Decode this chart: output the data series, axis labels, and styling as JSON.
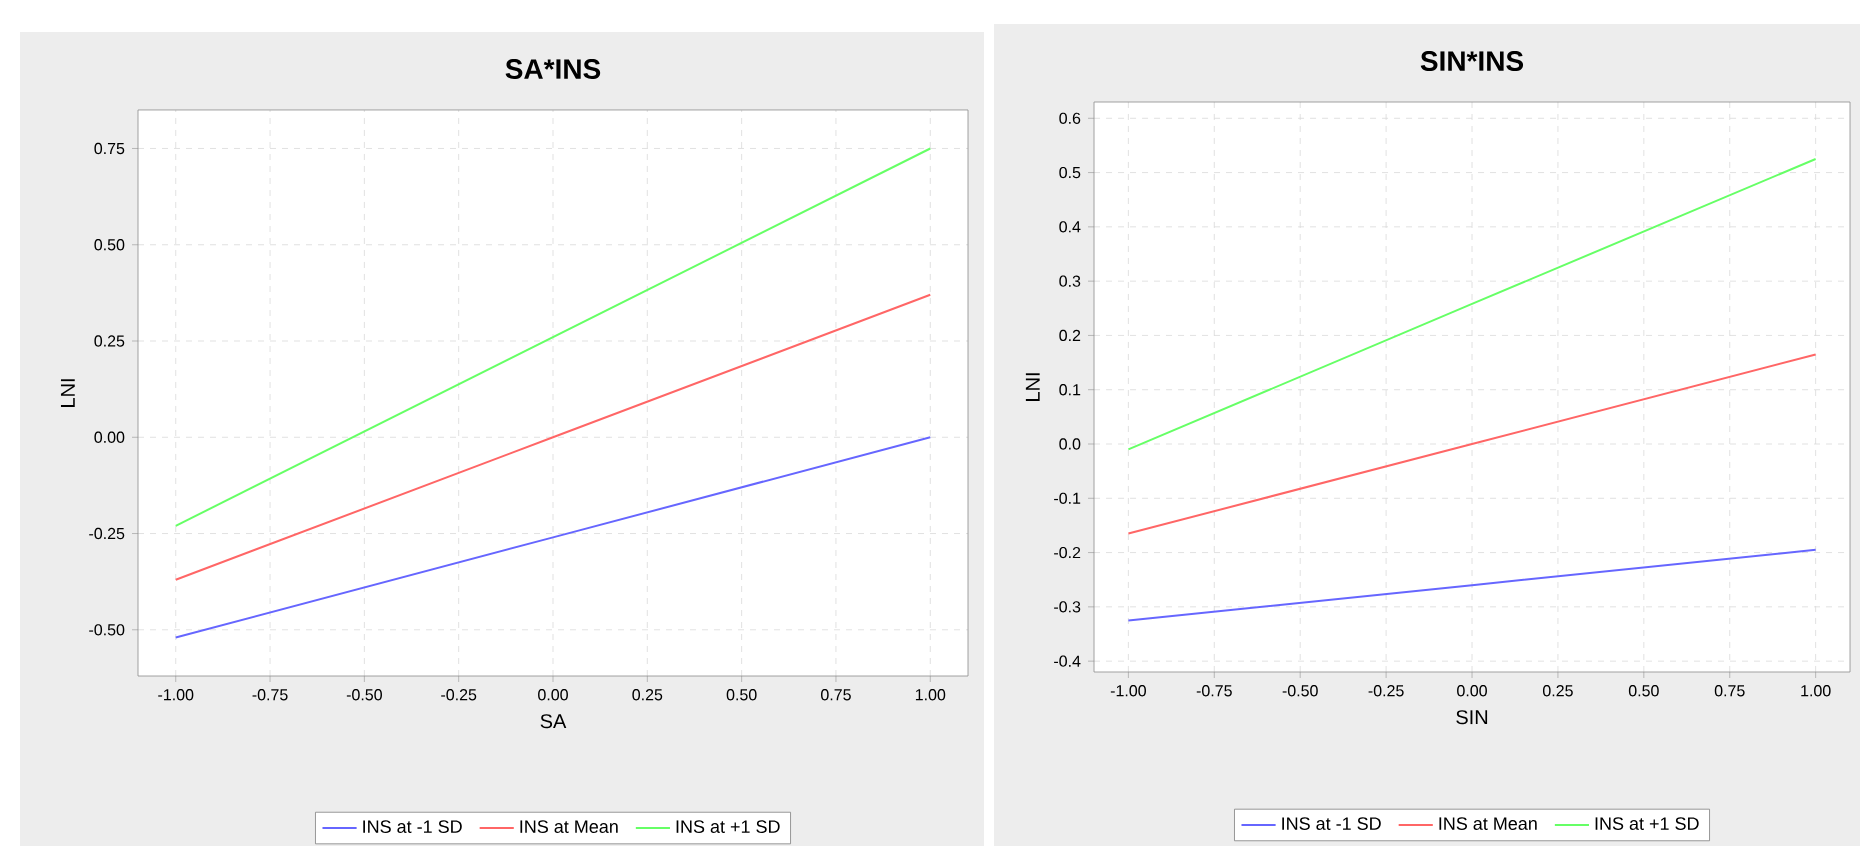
{
  "chart_data": [
    {
      "type": "line",
      "title": "SA*INS",
      "xlabel": "SA",
      "ylabel": "LNI",
      "xlim": [
        -1.1,
        1.1
      ],
      "ylim": [
        -0.62,
        0.85
      ],
      "xticks": [
        {
          "value": -1,
          "label": "-1.00"
        },
        {
          "value": -0.75,
          "label": "-0.75"
        },
        {
          "value": -0.5,
          "label": "-0.50"
        },
        {
          "value": -0.25,
          "label": "-0.25"
        },
        {
          "value": 0,
          "label": "0.00"
        },
        {
          "value": 0.25,
          "label": "0.25"
        },
        {
          "value": 0.5,
          "label": "0.50"
        },
        {
          "value": 0.75,
          "label": "0.75"
        },
        {
          "value": 1,
          "label": "1.00"
        }
      ],
      "yticks": [
        {
          "value": -0.5,
          "label": "-0.50"
        },
        {
          "value": -0.25,
          "label": "-0.25"
        },
        {
          "value": 0,
          "label": "0.00"
        },
        {
          "value": 0.25,
          "label": "0.25"
        },
        {
          "value": 0.5,
          "label": "0.50"
        },
        {
          "value": 0.75,
          "label": "0.75"
        }
      ],
      "grid": true,
      "legend": "bottom",
      "series": [
        {
          "name": "INS at -1 SD",
          "color": "#6666ff",
          "x": [
            -1,
            0,
            1
          ],
          "values": [
            -0.52,
            -0.26,
            0.0
          ]
        },
        {
          "name": "INS at Mean",
          "color": "#ff6666",
          "x": [
            -1,
            0,
            1
          ],
          "values": [
            -0.37,
            0.0,
            0.37
          ]
        },
        {
          "name": "INS at +1 SD",
          "color": "#66ff66",
          "x": [
            -1,
            0,
            1
          ],
          "values": [
            -0.23,
            0.26,
            0.75
          ]
        }
      ]
    },
    {
      "type": "line",
      "title": "SIN*INS",
      "xlabel": "SIN",
      "ylabel": "LNI",
      "xlim": [
        -1.1,
        1.1
      ],
      "ylim": [
        -0.42,
        0.63
      ],
      "xticks": [
        {
          "value": -1,
          "label": "-1.00"
        },
        {
          "value": -0.75,
          "label": "-0.75"
        },
        {
          "value": -0.5,
          "label": "-0.50"
        },
        {
          "value": -0.25,
          "label": "-0.25"
        },
        {
          "value": 0,
          "label": "0.00"
        },
        {
          "value": 0.25,
          "label": "0.25"
        },
        {
          "value": 0.5,
          "label": "0.50"
        },
        {
          "value": 0.75,
          "label": "0.75"
        },
        {
          "value": 1,
          "label": "1.00"
        }
      ],
      "yticks": [
        -0.4,
        -0.3,
        -0.2,
        -0.1,
        {
          "value": 0,
          "label": "0.0"
        },
        0.1,
        0.2,
        0.3,
        0.4,
        0.5,
        0.6
      ],
      "grid": true,
      "legend": "bottom",
      "series": [
        {
          "name": "INS at -1 SD",
          "color": "#6666ff",
          "x": [
            -1,
            0,
            1
          ],
          "values": [
            -0.325,
            -0.26,
            -0.195
          ]
        },
        {
          "name": "INS at Mean",
          "color": "#ff6666",
          "x": [
            -1,
            0,
            1
          ],
          "values": [
            -0.165,
            0.0,
            0.165
          ]
        },
        {
          "name": "INS at +1 SD",
          "color": "#66ff66",
          "x": [
            -1,
            0,
            1
          ],
          "values": [
            -0.01,
            0.258,
            0.525
          ]
        }
      ]
    }
  ]
}
